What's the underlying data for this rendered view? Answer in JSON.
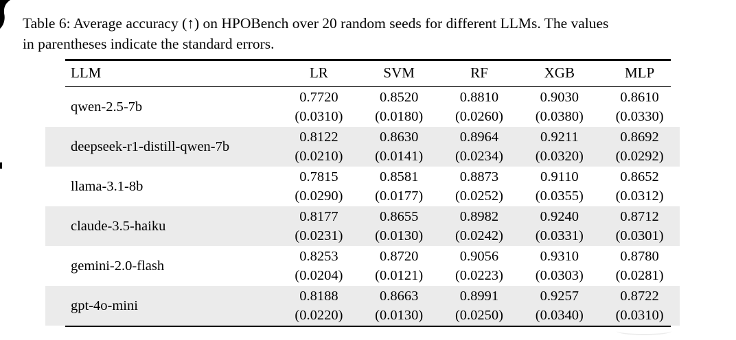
{
  "caption": {
    "line1": "Table 6: Average accuracy (↑) on HPOBench over 20 random seeds for different LLMs. The values",
    "line2": "in parentheses indicate the standard errors."
  },
  "table": {
    "columns": [
      "LLM",
      "LR",
      "SVM",
      "RF",
      "XGB",
      "MLP"
    ],
    "row_shade_color": "#ebebeb",
    "rows": [
      {
        "llm": "qwen-2.5-7b",
        "shaded": false,
        "cells": [
          {
            "value": "0.7720",
            "stderr": "(0.0310)"
          },
          {
            "value": "0.8520",
            "stderr": "(0.0180)"
          },
          {
            "value": "0.8810",
            "stderr": "(0.0260)"
          },
          {
            "value": "0.9030",
            "stderr": "(0.0380)"
          },
          {
            "value": "0.8610",
            "stderr": "(0.0330)"
          }
        ]
      },
      {
        "llm": "deepseek-r1-distill-qwen-7b",
        "shaded": true,
        "cells": [
          {
            "value": "0.8122",
            "stderr": "(0.0210)"
          },
          {
            "value": "0.8630",
            "stderr": "(0.0141)"
          },
          {
            "value": "0.8964",
            "stderr": "(0.0234)"
          },
          {
            "value": "0.9211",
            "stderr": "(0.0320)"
          },
          {
            "value": "0.8692",
            "stderr": "(0.0292)"
          }
        ]
      },
      {
        "llm": "llama-3.1-8b",
        "shaded": false,
        "cells": [
          {
            "value": "0.7815",
            "stderr": "(0.0290)"
          },
          {
            "value": "0.8581",
            "stderr": "(0.0177)"
          },
          {
            "value": "0.8873",
            "stderr": "(0.0252)"
          },
          {
            "value": "0.9110",
            "stderr": "(0.0355)"
          },
          {
            "value": "0.8652",
            "stderr": "(0.0312)"
          }
        ]
      },
      {
        "llm": "claude-3.5-haiku",
        "shaded": true,
        "cells": [
          {
            "value": "0.8177",
            "stderr": "(0.0231)"
          },
          {
            "value": "0.8655",
            "stderr": "(0.0130)"
          },
          {
            "value": "0.8982",
            "stderr": "(0.0242)"
          },
          {
            "value": "0.9240",
            "stderr": "(0.0331)"
          },
          {
            "value": "0.8712",
            "stderr": "(0.0301)"
          }
        ]
      },
      {
        "llm": "gemini-2.0-flash",
        "shaded": false,
        "cells": [
          {
            "value": "0.8253",
            "stderr": "(0.0204)"
          },
          {
            "value": "0.8720",
            "stderr": "(0.0121)"
          },
          {
            "value": "0.9056",
            "stderr": "(0.0223)"
          },
          {
            "value": "0.9310",
            "stderr": "(0.0303)"
          },
          {
            "value": "0.8780",
            "stderr": "(0.0281)"
          }
        ]
      },
      {
        "llm": "gpt-4o-mini",
        "shaded": true,
        "cells": [
          {
            "value": "0.8188",
            "stderr": "(0.0220)"
          },
          {
            "value": "0.8663",
            "stderr": "(0.0130)"
          },
          {
            "value": "0.8991",
            "stderr": "(0.0250)"
          },
          {
            "value": "0.9257",
            "stderr": "(0.0340)"
          },
          {
            "value": "0.8722",
            "stderr": "(0.0310)"
          }
        ]
      }
    ]
  }
}
